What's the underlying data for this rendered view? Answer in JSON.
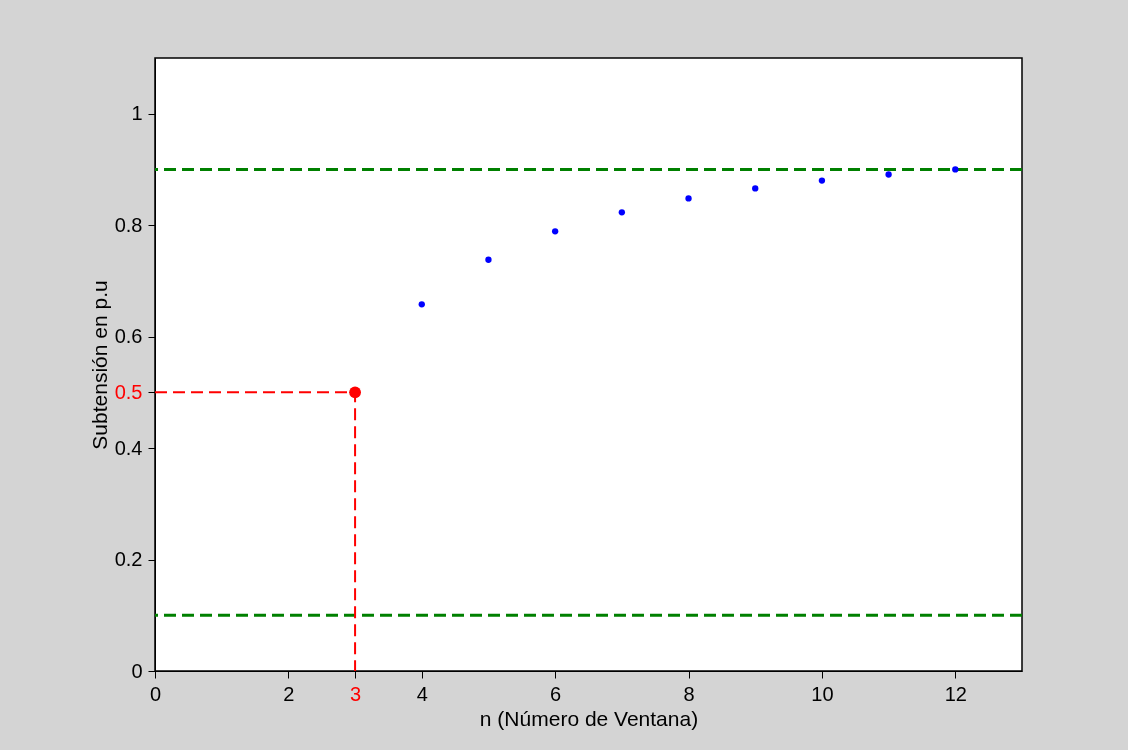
{
  "chart_data": {
    "type": "scatter",
    "xlabel": "n (Número de Ventana)",
    "ylabel": "Subtensión en p.u",
    "xlim": [
      0,
      13
    ],
    "ylim": [
      0,
      1.1
    ],
    "xticks": [
      0,
      2,
      {
        "value": 3,
        "label": "3"
      },
      4,
      6,
      8,
      10,
      12
    ],
    "yticks": [
      0,
      0.2,
      0.4,
      {
        "value": 0.5,
        "label": "0.5"
      },
      0.6,
      0.8,
      1
    ],
    "grid": false,
    "marker": "circle",
    "series": [
      {
        "color": "#0000ff",
        "x": [
          4,
          5,
          6,
          7,
          8,
          9,
          10,
          11,
          12
        ],
        "values": [
          0.658,
          0.738,
          0.789,
          0.823,
          0.848,
          0.866,
          0.88,
          0.891,
          0.9
        ]
      },
      {
        "type": "line",
        "color": "#ff0000",
        "x": [
          0,
          3,
          3
        ],
        "values": [
          0.5,
          0.5,
          0
        ],
        "line_style": "dashed",
        "marker": "none"
      },
      {
        "color": "#ff0000",
        "x": [
          3
        ],
        "values": [
          0.5
        ]
      }
    ],
    "ref_lines": [
      {
        "axis": "y",
        "value": 0.9,
        "color": "#008000",
        "line_style": "dashed"
      },
      {
        "axis": "y",
        "value": 0.1,
        "color": "#008000",
        "line_style": "dashed"
      }
    ]
  }
}
